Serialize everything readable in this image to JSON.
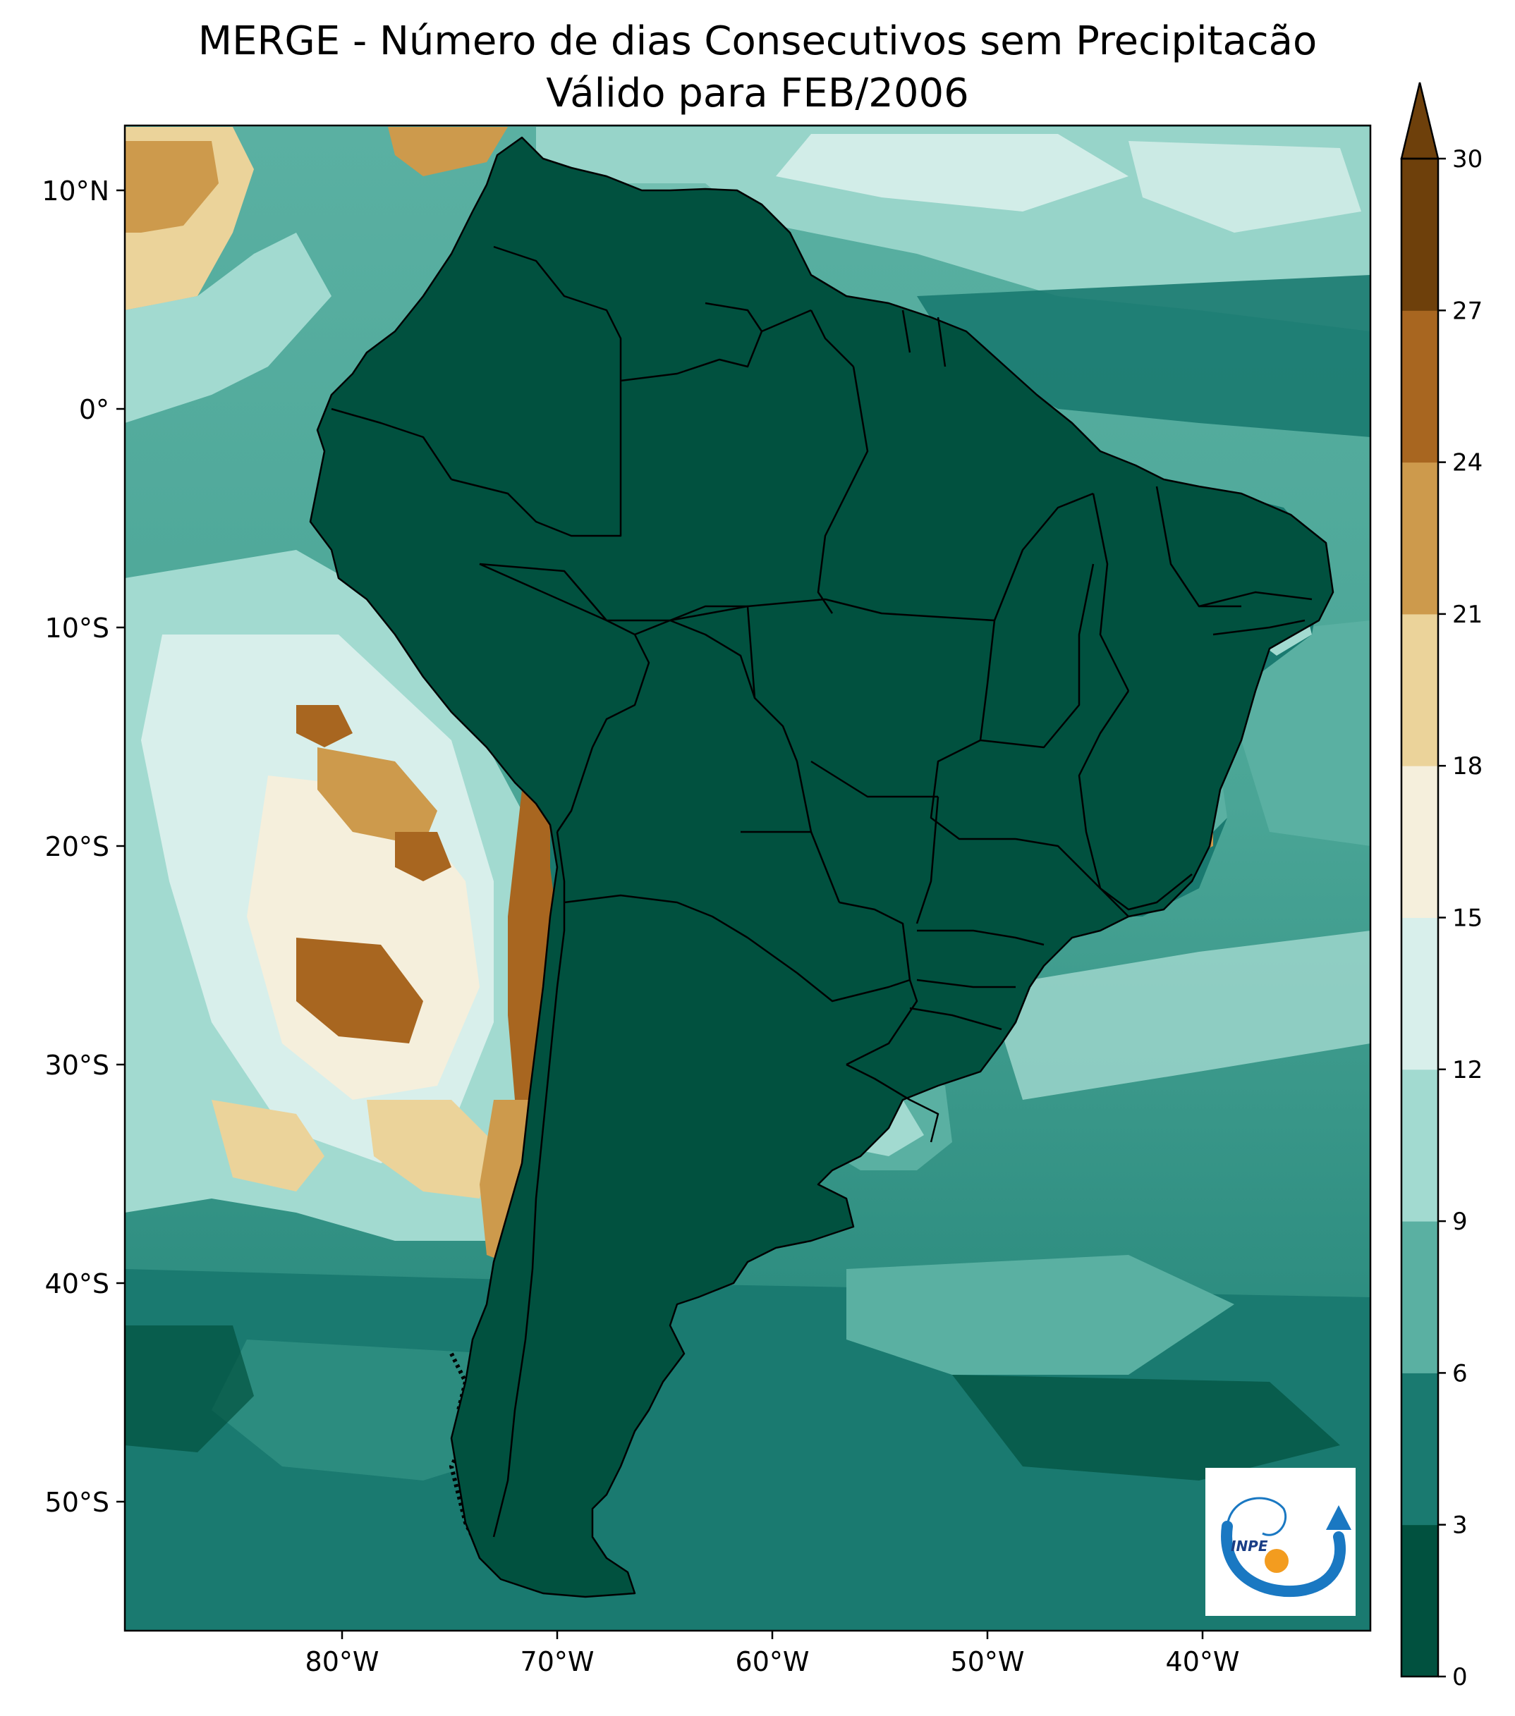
{
  "title": {
    "line1": "MERGE - Número de dias Consecutivos sem Precipitacão",
    "line2": "Válido para FEB/2006"
  },
  "axes": {
    "lat_labels": [
      "10°N",
      "0°",
      "10°S",
      "20°S",
      "30°S",
      "40°S",
      "50°S"
    ],
    "lon_labels": [
      "80°W",
      "70°W",
      "60°W",
      "50°W",
      "40°W"
    ]
  },
  "colorbar": {
    "ticks": [
      "0",
      "3",
      "6",
      "9",
      "12",
      "15",
      "18",
      "21",
      "24",
      "27",
      "30"
    ],
    "bands": [
      "#01513f",
      "#1a7a70",
      "#5ab0a2",
      "#a2dad0",
      "#d8efeb",
      "#f5efdc",
      "#ebd39a",
      "#cd9a4c",
      "#a86620",
      "#6e400b"
    ],
    "extend": "max"
  },
  "logo": {
    "text": "INPE"
  },
  "colors": {
    "ocean_mid": "#5ab0a2",
    "ocean_dark": "#1a7a70",
    "land": "#01513f",
    "coast_dry": "#a86620",
    "border": "#000000"
  }
}
